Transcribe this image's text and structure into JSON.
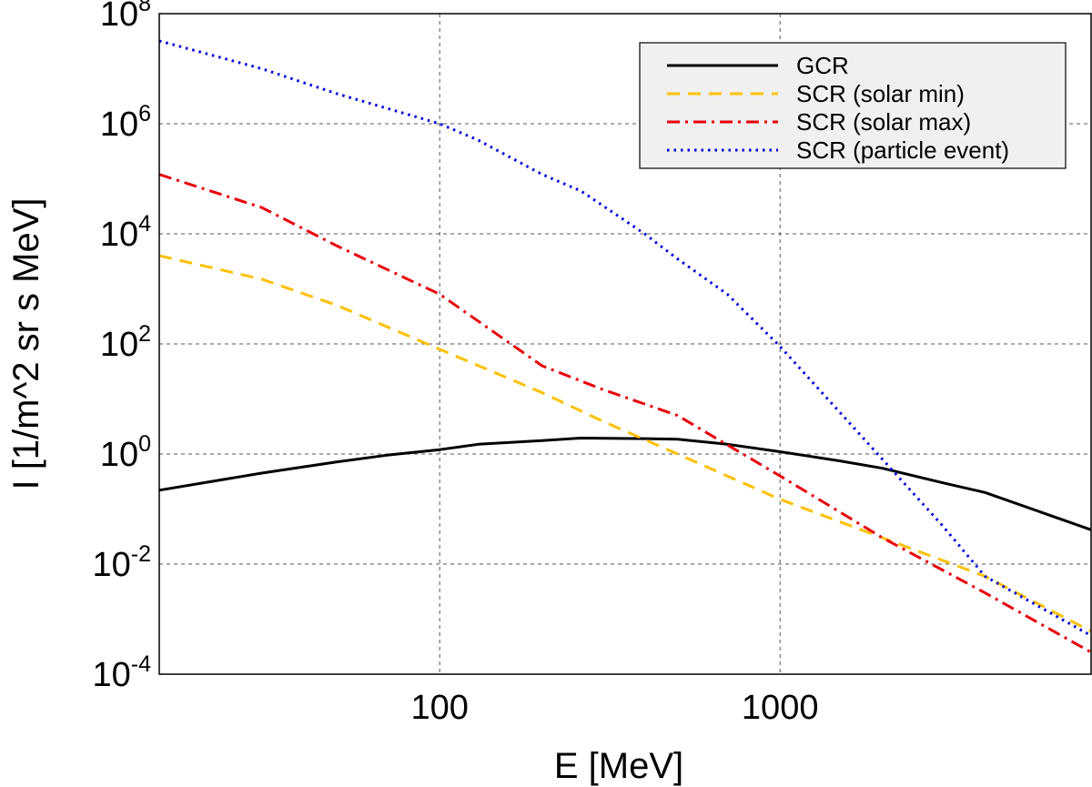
{
  "chart_data": {
    "type": "line",
    "title": "",
    "xlabel": "E [MeV]",
    "ylabel": "I [1/m^2 sr s MeV]",
    "xscale": "log",
    "yscale": "log",
    "xlim": [
      15,
      8200
    ],
    "ylim": [
      0.0001,
      100000000
    ],
    "grid": true,
    "legend_position": "top-right",
    "x_ticks": [
      {
        "value": 100,
        "label": "100"
      },
      {
        "value": 1000,
        "label": "1000"
      }
    ],
    "y_ticks": [
      {
        "value": 0.0001,
        "base": "10",
        "exp": "-4"
      },
      {
        "value": 0.01,
        "base": "10",
        "exp": "-2"
      },
      {
        "value": 1,
        "base": "10",
        "exp": "0"
      },
      {
        "value": 100,
        "base": "10",
        "exp": "2"
      },
      {
        "value": 10000,
        "base": "10",
        "exp": "4"
      },
      {
        "value": 1000000,
        "base": "10",
        "exp": "6"
      },
      {
        "value": 100000000,
        "base": "10",
        "exp": "8"
      }
    ],
    "series": [
      {
        "name": "GCR",
        "color": "#000000",
        "dash": "solid",
        "x": [
          15,
          30,
          50,
          70,
          100,
          130,
          200,
          260,
          400,
          500,
          700,
          1000,
          1500,
          2000,
          3000,
          4000,
          8200
        ],
        "y": [
          0.22,
          0.45,
          0.72,
          0.95,
          1.2,
          1.5,
          1.75,
          1.95,
          1.9,
          1.85,
          1.5,
          1.1,
          0.75,
          0.55,
          0.3,
          0.2,
          0.042
        ]
      },
      {
        "name": "SCR (solar min)",
        "color": "#FFC000",
        "dash": "dashed",
        "x": [
          15,
          30,
          50,
          100,
          200,
          300,
          500,
          1000,
          2000,
          4000,
          8200
        ],
        "y": [
          4000,
          1500,
          500,
          80,
          13,
          4,
          1.0,
          0.15,
          0.03,
          0.006,
          0.0006
        ]
      },
      {
        "name": "SCR (solar max)",
        "color": "#E8000B",
        "dash": "dashdot",
        "x": [
          15,
          30,
          50,
          100,
          200,
          300,
          500,
          1000,
          2000,
          4000,
          8200
        ],
        "y": [
          120000,
          30000,
          6000,
          800,
          40,
          15,
          5,
          0.4,
          0.03,
          0.003,
          0.00025
        ]
      },
      {
        "name": "SCR (particle event)",
        "color": "#0000E0",
        "dash": "dotted",
        "x": [
          15,
          30,
          50,
          100,
          130,
          200,
          260,
          400,
          500,
          700,
          1000,
          2000,
          3000,
          4000,
          8200
        ],
        "y": [
          32000000,
          10000000,
          3500000,
          1000000,
          500000,
          120000,
          60000,
          10000,
          3500,
          800,
          90,
          0.8,
          0.05,
          0.006,
          0.0005
        ]
      }
    ]
  }
}
